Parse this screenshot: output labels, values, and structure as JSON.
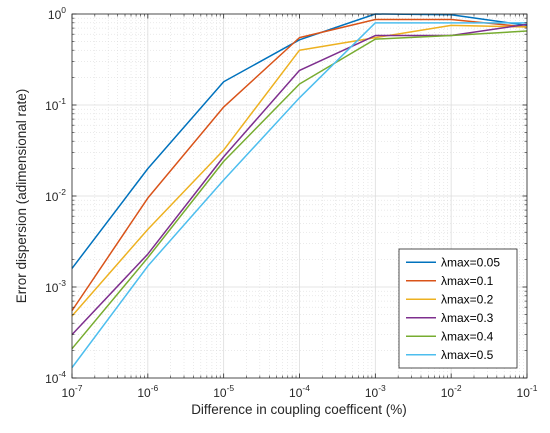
{
  "chart_data": {
    "type": "line",
    "title": "",
    "xlabel": "Difference in coupling coefficent (%)",
    "ylabel": "Error dispersion (adimensional rate)",
    "xscale": "log",
    "yscale": "log",
    "xlim": [
      1e-07,
      0.1
    ],
    "ylim": [
      0.0001,
      1
    ],
    "grid": true,
    "minor_grid": true,
    "legend_position": "bottom-right",
    "x": [
      1e-07,
      1e-06,
      1e-05,
      0.0001,
      0.001,
      0.01,
      0.1
    ],
    "xtick_labels": [
      {
        "base": "10",
        "exp": "-7"
      },
      {
        "base": "10",
        "exp": "-6"
      },
      {
        "base": "10",
        "exp": "-5"
      },
      {
        "base": "10",
        "exp": "-4"
      },
      {
        "base": "10",
        "exp": "-3"
      },
      {
        "base": "10",
        "exp": "-2"
      },
      {
        "base": "10",
        "exp": "-1"
      }
    ],
    "y_ticks": [
      0.0001,
      0.001,
      0.01,
      0.1,
      1
    ],
    "ytick_labels": [
      {
        "base": "10",
        "exp": "-4"
      },
      {
        "base": "10",
        "exp": "-3"
      },
      {
        "base": "10",
        "exp": "-2"
      },
      {
        "base": "10",
        "exp": "-1"
      },
      {
        "base": "10",
        "exp": "0"
      }
    ],
    "series": [
      {
        "name": "λmax=0.05",
        "color": "#0072BD",
        "values": [
          0.0016,
          0.02,
          0.18,
          0.52,
          1.0,
          0.98,
          0.75
        ]
      },
      {
        "name": "λmax=0.1",
        "color": "#D95319",
        "values": [
          0.00055,
          0.0095,
          0.095,
          0.55,
          0.87,
          0.87,
          0.72
        ]
      },
      {
        "name": "λmax=0.2",
        "color": "#EDB120",
        "values": [
          0.00048,
          0.0043,
          0.032,
          0.4,
          0.55,
          0.75,
          0.72
        ]
      },
      {
        "name": "λmax=0.3",
        "color": "#7E2F8E",
        "values": [
          0.0003,
          0.0023,
          0.027,
          0.24,
          0.58,
          0.58,
          0.77
        ]
      },
      {
        "name": "λmax=0.4",
        "color": "#77AC30",
        "values": [
          0.00021,
          0.0021,
          0.024,
          0.17,
          0.53,
          0.58,
          0.65
        ]
      },
      {
        "name": "λmax=0.5",
        "color": "#4DBEEE",
        "values": [
          0.00013,
          0.0017,
          0.015,
          0.12,
          0.8,
          0.8,
          0.8
        ]
      }
    ]
  }
}
